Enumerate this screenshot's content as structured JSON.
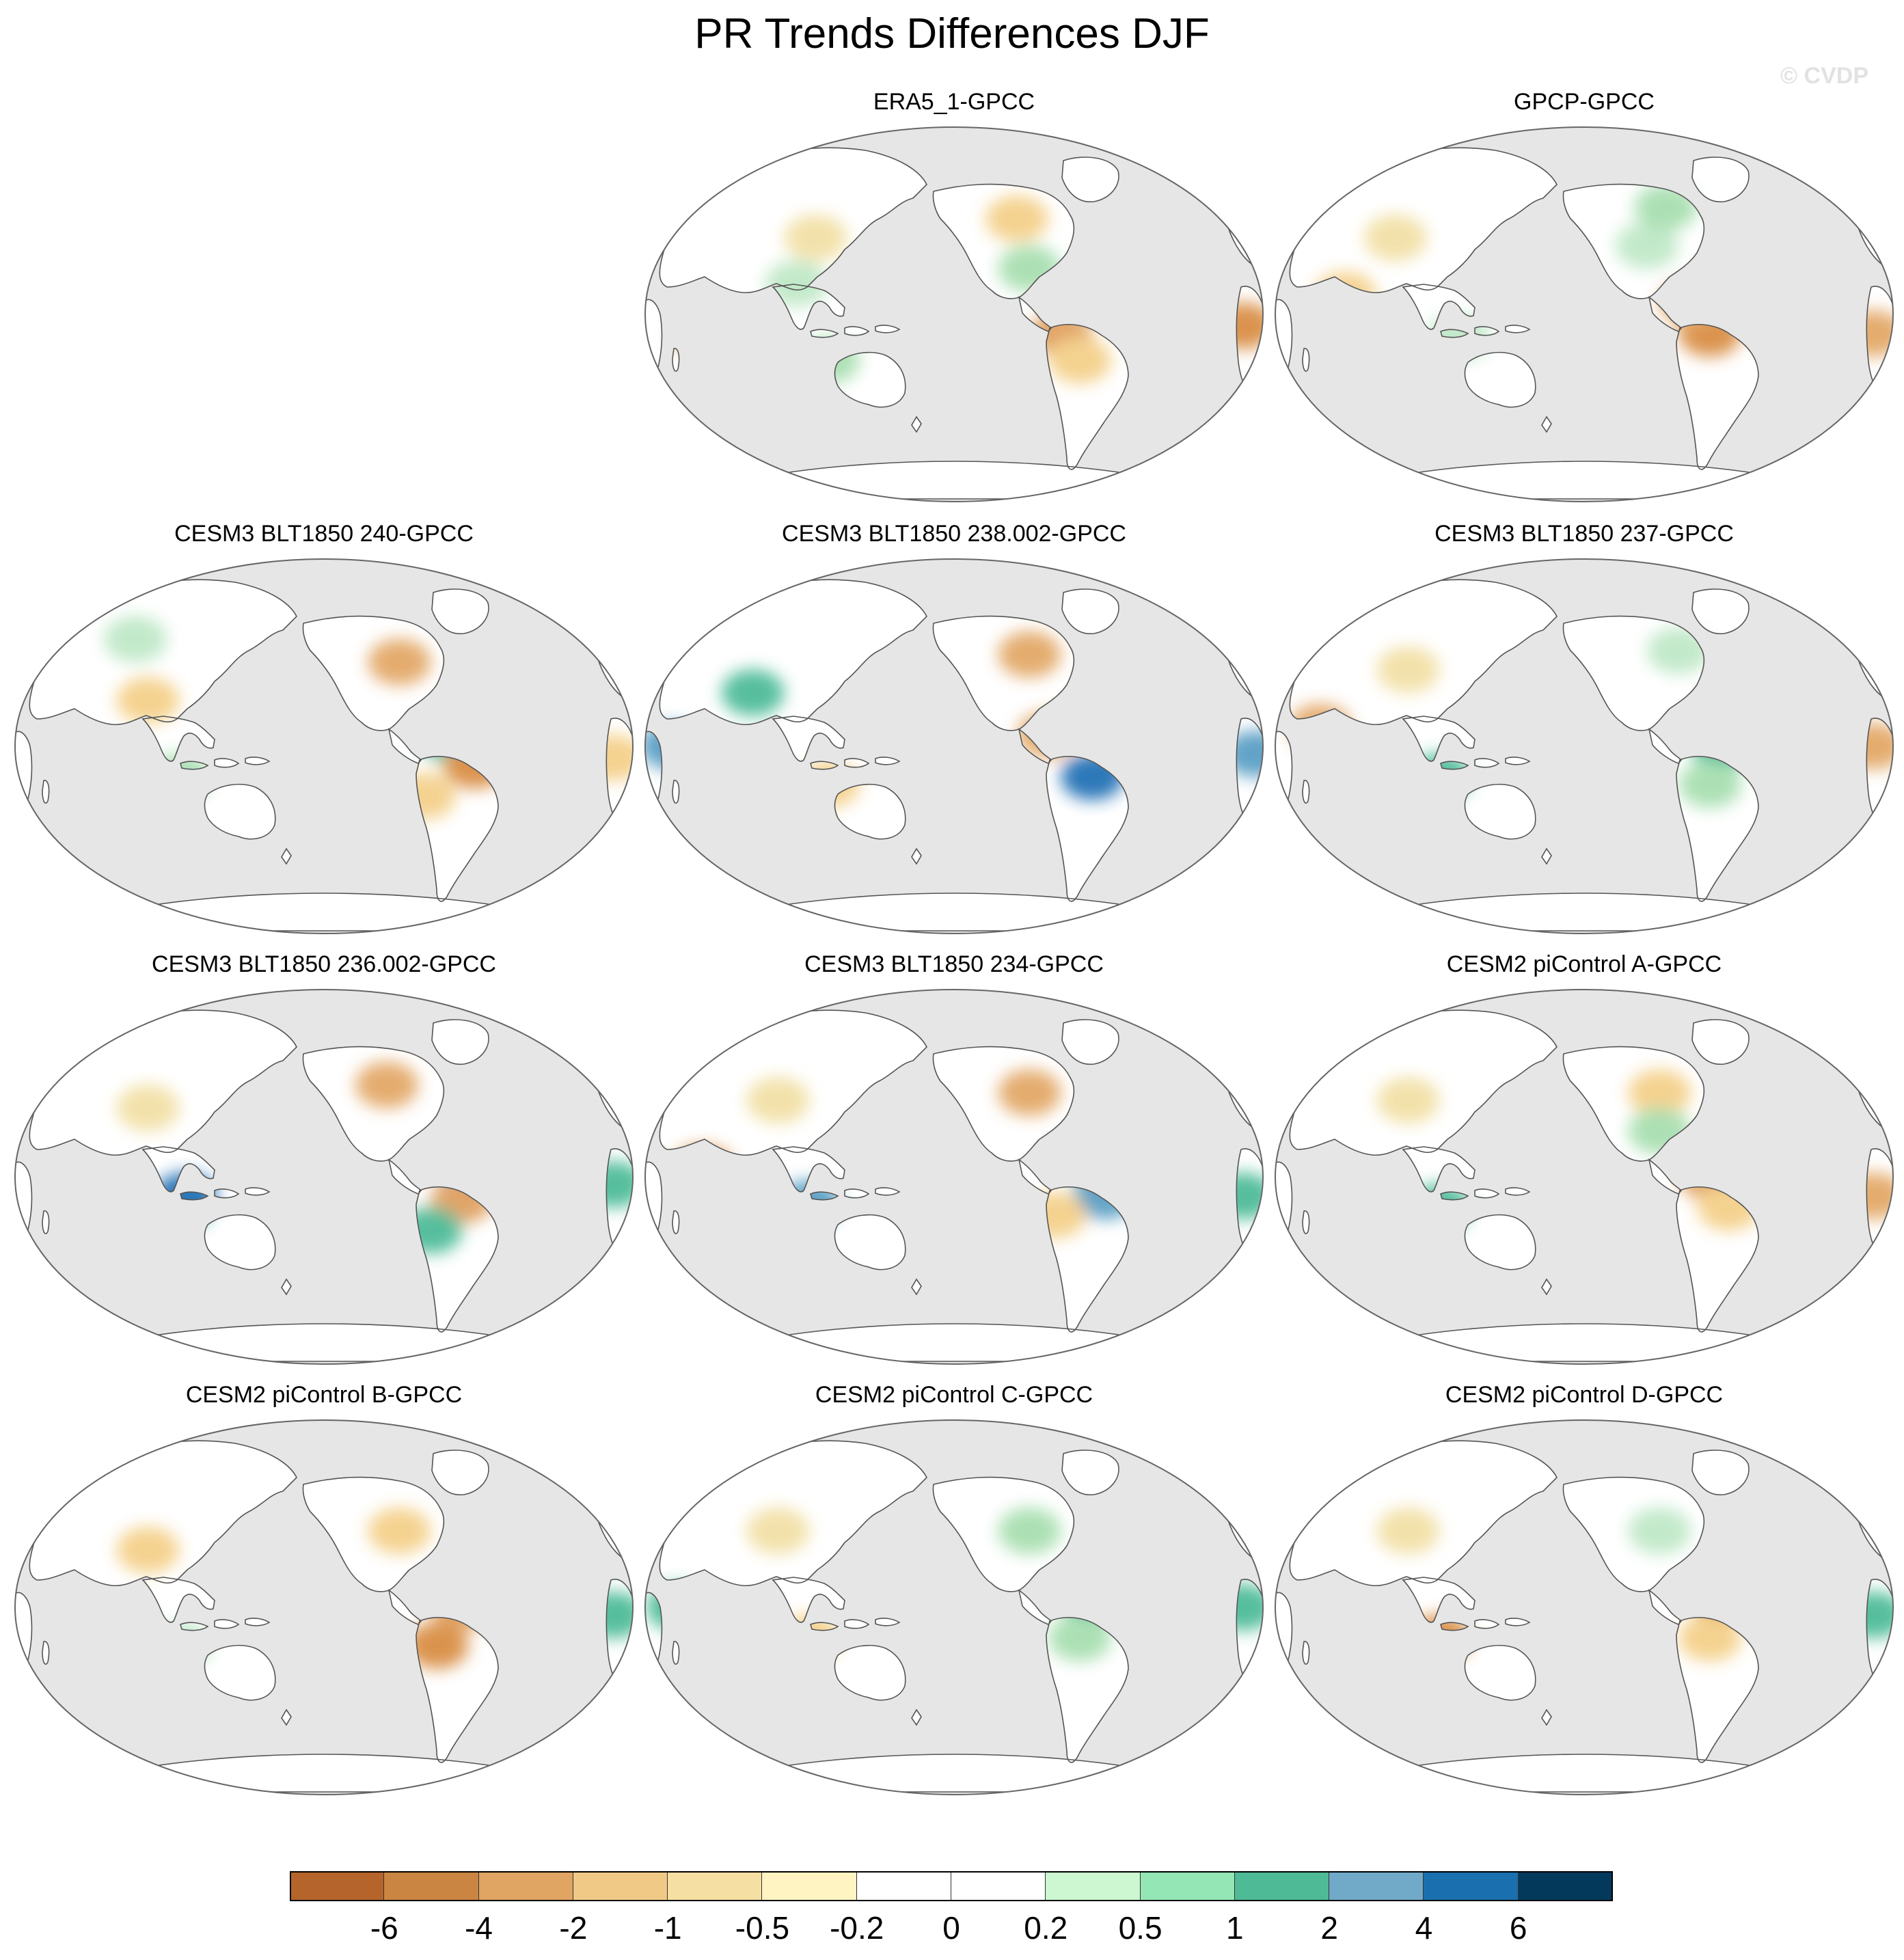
{
  "figure": {
    "title": "PR Trends Differences DJF",
    "watermark": "© CVDP",
    "colors": {
      "ocean": "#e6e6e6",
      "land_neutral": "#ffffff",
      "coast": "#555555"
    }
  },
  "panels": [
    {
      "title": "ERA5_1-GPCC",
      "row": 0,
      "col": 1,
      "patches": [
        [
          0.62,
          0.38,
          "#a8dfb0"
        ],
        [
          0.72,
          0.44,
          "#4dbb98"
        ],
        [
          0.67,
          0.55,
          "#e0a060"
        ],
        [
          0.7,
          0.62,
          "#f4d08a"
        ],
        [
          0.6,
          0.25,
          "#f4d08a"
        ],
        [
          0.25,
          0.42,
          "#bfe8c7"
        ],
        [
          0.28,
          0.3,
          "#f2e0a6"
        ],
        [
          0.1,
          0.55,
          "#e3a867"
        ],
        [
          0.96,
          0.53,
          "#d98e45"
        ],
        [
          0.3,
          0.62,
          "#a8dfb0"
        ]
      ]
    },
    {
      "title": "GPCP-GPCC",
      "row": 0,
      "col": 2,
      "patches": [
        [
          0.7,
          0.55,
          "#d98e45"
        ],
        [
          0.67,
          0.47,
          "#e3a867"
        ],
        [
          0.6,
          0.32,
          "#bfe8c7"
        ],
        [
          0.63,
          0.22,
          "#a8dfb0"
        ],
        [
          0.2,
          0.3,
          "#f2e0a6"
        ],
        [
          0.96,
          0.55,
          "#e3a867"
        ],
        [
          0.3,
          0.56,
          "#bfe8c7"
        ],
        [
          0.12,
          0.45,
          "#f4d08a"
        ]
      ]
    },
    {
      "title": "CESM3 BLT1850 240-GPCC",
      "row": 1,
      "col": 0,
      "patches": [
        [
          0.7,
          0.48,
          "#4dbb98"
        ],
        [
          0.74,
          0.55,
          "#d98e45"
        ],
        [
          0.66,
          0.63,
          "#f4d08a"
        ],
        [
          0.62,
          0.28,
          "#e3a867"
        ],
        [
          0.22,
          0.38,
          "#f4d08a"
        ],
        [
          0.27,
          0.58,
          "#a8dfb0"
        ],
        [
          0.96,
          0.53,
          "#f4d08a"
        ],
        [
          0.2,
          0.22,
          "#bfe8c7"
        ]
      ]
    },
    {
      "title": "CESM3 BLT1850 238.002-GPCC",
      "row": 1,
      "col": 1,
      "patches": [
        [
          0.78,
          0.5,
          "#5a9fc4"
        ],
        [
          0.72,
          0.58,
          "#2171b5"
        ],
        [
          0.65,
          0.47,
          "#e3a867"
        ],
        [
          0.98,
          0.52,
          "#5a9fc4"
        ],
        [
          0.05,
          0.5,
          "#5a9fc4"
        ],
        [
          0.18,
          0.36,
          "#4dbb98"
        ],
        [
          0.62,
          0.26,
          "#e3a867"
        ],
        [
          0.3,
          0.6,
          "#f4d08a"
        ]
      ]
    },
    {
      "title": "CESM3 BLT1850 237-GPCC",
      "row": 1,
      "col": 2,
      "patches": [
        [
          0.72,
          0.5,
          "#4dbb98"
        ],
        [
          0.7,
          0.6,
          "#a8dfb0"
        ],
        [
          0.65,
          0.25,
          "#bfe8c7"
        ],
        [
          0.22,
          0.3,
          "#f2e0a6"
        ],
        [
          0.27,
          0.58,
          "#4dbb98"
        ],
        [
          0.96,
          0.5,
          "#e3a867"
        ],
        [
          0.08,
          0.45,
          "#e3a867"
        ]
      ]
    },
    {
      "title": "CESM3 BLT1850 236.002-GPCC",
      "row": 2,
      "col": 0,
      "patches": [
        [
          0.72,
          0.46,
          "#5a9fc4"
        ],
        [
          0.72,
          0.56,
          "#e0a060"
        ],
        [
          0.67,
          0.64,
          "#4dbb98"
        ],
        [
          0.6,
          0.26,
          "#e3a867"
        ],
        [
          0.27,
          0.58,
          "#4dbb98"
        ],
        [
          0.28,
          0.55,
          "#2171b5"
        ],
        [
          0.22,
          0.32,
          "#f2e0a6"
        ],
        [
          0.96,
          0.52,
          "#4dbb98"
        ]
      ]
    },
    {
      "title": "CESM3 BLT1850 234-GPCC",
      "row": 2,
      "col": 1,
      "patches": [
        [
          0.72,
          0.46,
          "#4dbb98"
        ],
        [
          0.74,
          0.55,
          "#5a9fc4"
        ],
        [
          0.66,
          0.6,
          "#f4d08a"
        ],
        [
          0.62,
          0.28,
          "#e3a867"
        ],
        [
          0.27,
          0.57,
          "#5a9fc4"
        ],
        [
          0.1,
          0.48,
          "#d98e45"
        ],
        [
          0.96,
          0.55,
          "#4dbb98"
        ],
        [
          0.22,
          0.3,
          "#f2e0a6"
        ]
      ]
    },
    {
      "title": "CESM2 piControl A-GPCC",
      "row": 2,
      "col": 2,
      "patches": [
        [
          0.7,
          0.5,
          "#e0a060"
        ],
        [
          0.73,
          0.58,
          "#f4d08a"
        ],
        [
          0.62,
          0.28,
          "#f4d08a"
        ],
        [
          0.62,
          0.38,
          "#a8dfb0"
        ],
        [
          0.27,
          0.58,
          "#4dbb98"
        ],
        [
          0.22,
          0.3,
          "#f2e0a6"
        ],
        [
          0.96,
          0.55,
          "#e3a867"
        ]
      ]
    },
    {
      "title": "CESM2 piControl B-GPCC",
      "row": 3,
      "col": 0,
      "patches": [
        [
          0.72,
          0.5,
          "#e0a060"
        ],
        [
          0.74,
          0.43,
          "#4dbb98"
        ],
        [
          0.68,
          0.6,
          "#d98e45"
        ],
        [
          0.62,
          0.3,
          "#f4d08a"
        ],
        [
          0.22,
          0.35,
          "#f4d08a"
        ],
        [
          0.27,
          0.6,
          "#bfe8c7"
        ],
        [
          0.96,
          0.52,
          "#4dbb98"
        ]
      ]
    },
    {
      "title": "CESM2 piControl C-GPCC",
      "row": 3,
      "col": 1,
      "patches": [
        [
          0.72,
          0.48,
          "#4dbb98"
        ],
        [
          0.7,
          0.58,
          "#a8dfb0"
        ],
        [
          0.62,
          0.3,
          "#a8dfb0"
        ],
        [
          0.22,
          0.3,
          "#f2e0a6"
        ],
        [
          0.27,
          0.58,
          "#f4d08a"
        ],
        [
          0.96,
          0.5,
          "#4dbb98"
        ],
        [
          0.06,
          0.5,
          "#4dbb98"
        ]
      ]
    },
    {
      "title": "CESM2 piControl D-GPCC",
      "row": 3,
      "col": 2,
      "patches": [
        [
          0.72,
          0.48,
          "#e0a060"
        ],
        [
          0.7,
          0.58,
          "#f4d08a"
        ],
        [
          0.62,
          0.3,
          "#bfe8c7"
        ],
        [
          0.27,
          0.58,
          "#d98e45"
        ],
        [
          0.22,
          0.3,
          "#f2e0a6"
        ],
        [
          0.96,
          0.52,
          "#4dbb98"
        ]
      ]
    }
  ],
  "colorbar": {
    "colors": [
      "#b5652b",
      "#cb8542",
      "#e0a463",
      "#f1c986",
      "#f5dfa2",
      "#fff4c2",
      "#ffffff",
      "#ffffff",
      "#ccf7d0",
      "#95e6b5",
      "#4fba96",
      "#71a9c9",
      "#1a6fae",
      "#033a5c"
    ],
    "labels": [
      "-6",
      "-4",
      "-2",
      "-1",
      "-0.5",
      "-0.2",
      "0",
      "0.2",
      "0.5",
      "1",
      "2",
      "4",
      "6"
    ]
  }
}
